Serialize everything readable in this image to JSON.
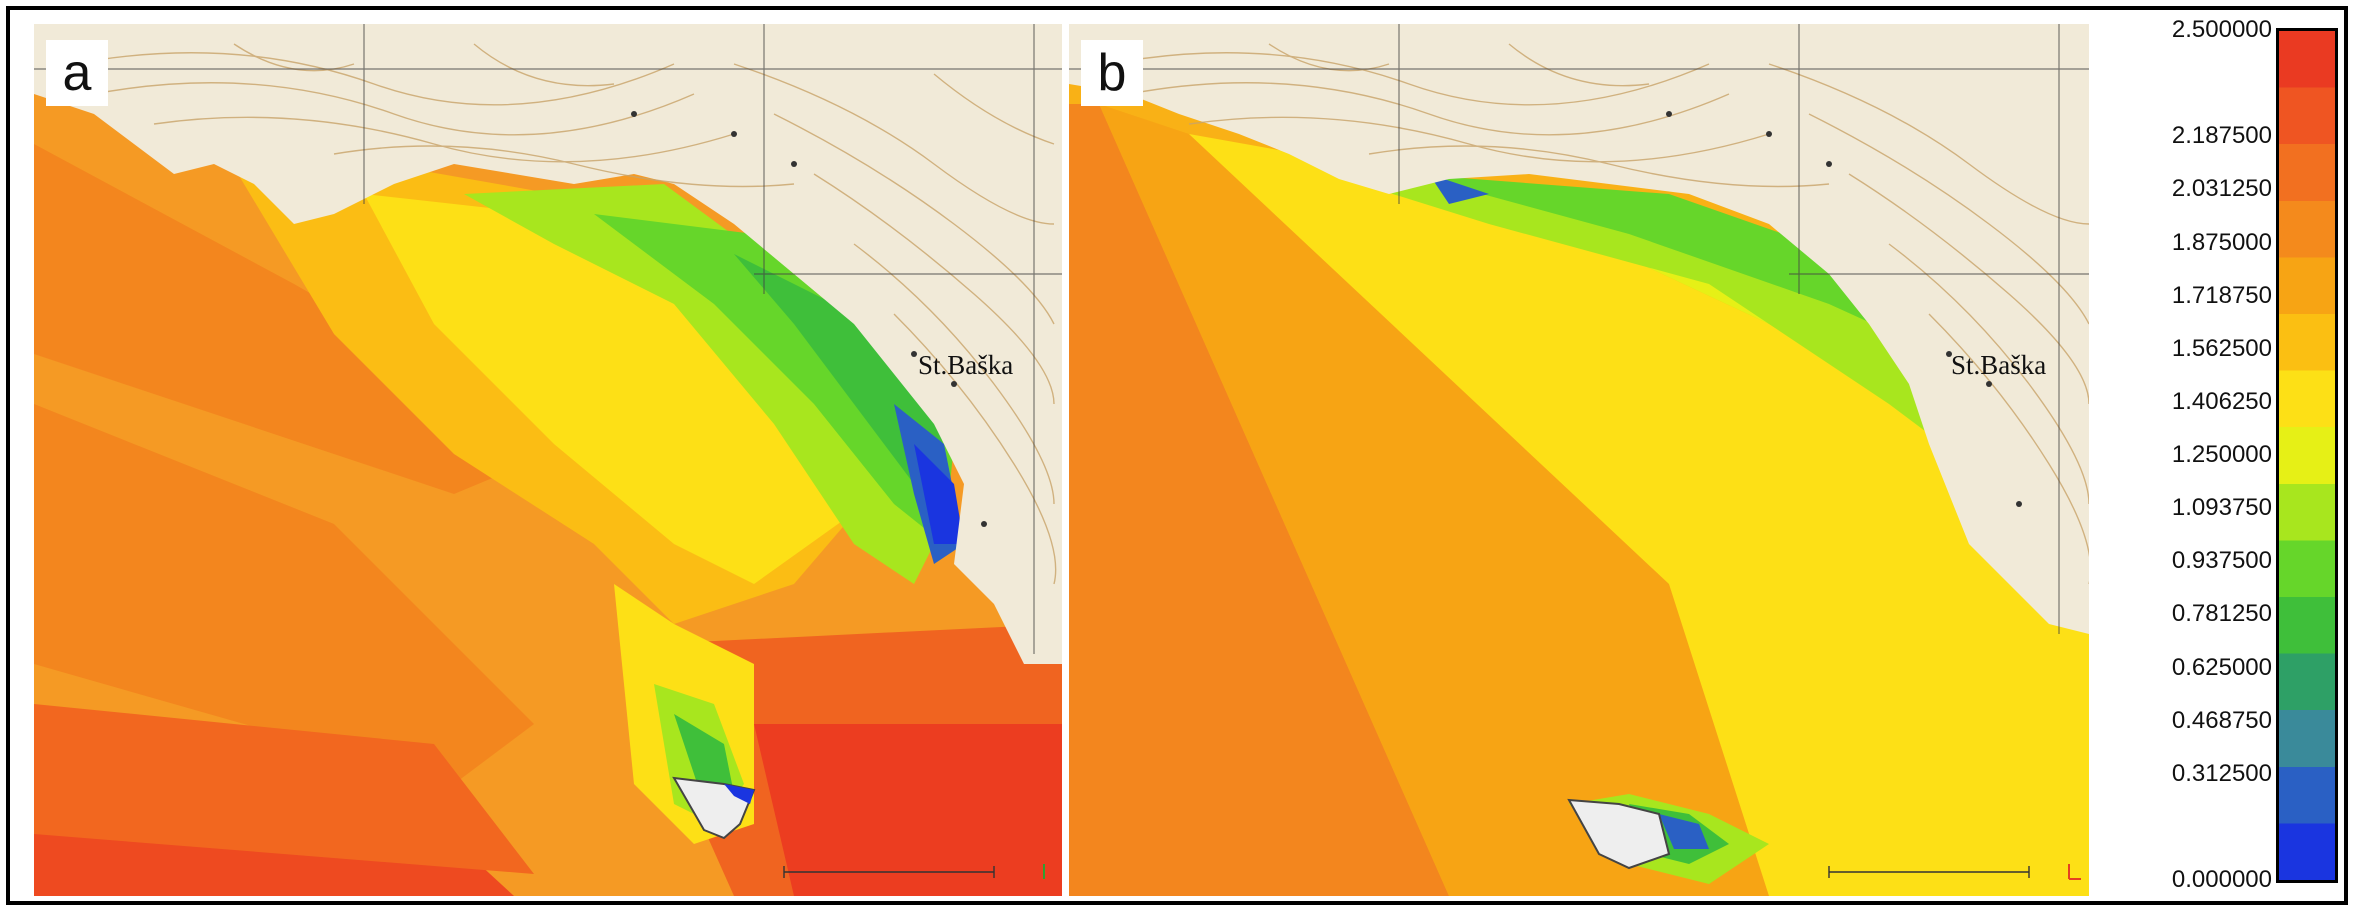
{
  "panels": [
    {
      "label": "a",
      "town": "St.Baška"
    },
    {
      "label": "b",
      "town": "St.Baška"
    }
  ],
  "colorbar": {
    "ticks": [
      "2.500000",
      "2.187500",
      "2.031250",
      "1.875000",
      "1.718750",
      "1.562500",
      "1.406250",
      "1.250000",
      "1.093750",
      "0.937500",
      "0.781250",
      "0.625000",
      "0.468750",
      "0.312500",
      "0.000000"
    ],
    "tick_values": [
      2.5,
      2.1875,
      2.03125,
      1.875,
      1.71875,
      1.5625,
      1.40625,
      1.25,
      1.09375,
      0.9375,
      0.78125,
      0.625,
      0.46875,
      0.3125,
      0.0
    ],
    "range": [
      0.0,
      2.5
    ],
    "colors_low_to_high": [
      "#1a35e0",
      "#2a60c4",
      "#3a8a9a",
      "#2ea066",
      "#3fbf3a",
      "#66d62a",
      "#a8e61e",
      "#e6f016",
      "#fde016",
      "#fbbf12",
      "#f7a414",
      "#f48a1c",
      "#f27020",
      "#ef5522",
      "#ea3a22"
    ]
  }
}
